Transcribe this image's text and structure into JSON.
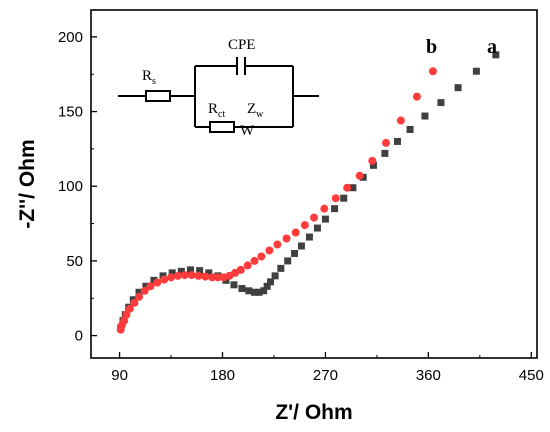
{
  "chart_data": {
    "type": "scatter",
    "xlabel": "Z'/ Ohm",
    "ylabel": "-Z''/ Ohm",
    "xlim": [
      65,
      455
    ],
    "ylim": [
      -15,
      218
    ],
    "xticks": [
      "90",
      "180",
      "270",
      "360",
      "450"
    ],
    "yticks": [
      "0",
      "50",
      "100",
      "150",
      "200"
    ],
    "grid": false,
    "series": [
      {
        "name": "a",
        "color": "#404040",
        "marker": "square",
        "x": [
          91,
          93,
          95,
          98,
          102,
          107,
          113,
          120,
          128,
          136,
          144,
          152,
          160,
          168,
          176,
          183,
          190,
          197,
          203,
          208,
          212,
          216,
          219,
          222,
          226,
          231,
          237,
          243,
          249,
          256,
          263,
          270,
          278,
          286,
          294,
          303,
          312,
          322,
          333,
          344,
          357,
          371,
          386,
          402,
          419
        ],
        "y": [
          5,
          10,
          14,
          19,
          24,
          29,
          33,
          37,
          40,
          42,
          43,
          44,
          43.5,
          42,
          40,
          37,
          34,
          31.5,
          30,
          29,
          29,
          30,
          33,
          36,
          40,
          45,
          50,
          55,
          60,
          66,
          72,
          78,
          85,
          92,
          99,
          106,
          114,
          122,
          130,
          138,
          147,
          156,
          166,
          177,
          188
        ]
      },
      {
        "name": "b",
        "color": "#ff3b3b",
        "marker": "circle",
        "x": [
          91,
          92,
          94,
          96,
          99,
          103,
          107,
          112,
          117,
          123,
          129,
          135,
          141,
          147,
          153,
          159,
          165,
          171,
          176,
          181,
          186,
          191,
          196,
          202,
          208,
          214,
          221,
          228,
          236,
          244,
          252,
          260,
          269,
          279,
          289,
          300,
          311,
          323,
          336,
          350,
          364
        ],
        "y": [
          4,
          7,
          10,
          14,
          18,
          22,
          26,
          30,
          33,
          35.5,
          37.5,
          39,
          40,
          40.5,
          40.5,
          40,
          39.5,
          39,
          39,
          39,
          40,
          42,
          44,
          47,
          50,
          53,
          57,
          61,
          65,
          69,
          74,
          79,
          85,
          92,
          99,
          107,
          117,
          129,
          144,
          160,
          177
        ]
      }
    ]
  },
  "circuit": {
    "cpe_label": "CPE",
    "rs_main": "R",
    "rs_sub": "s",
    "rct_main": "R",
    "rct_sub": "ct",
    "zw_main": "Z",
    "zw_sub": "w",
    "w_label": "W"
  }
}
